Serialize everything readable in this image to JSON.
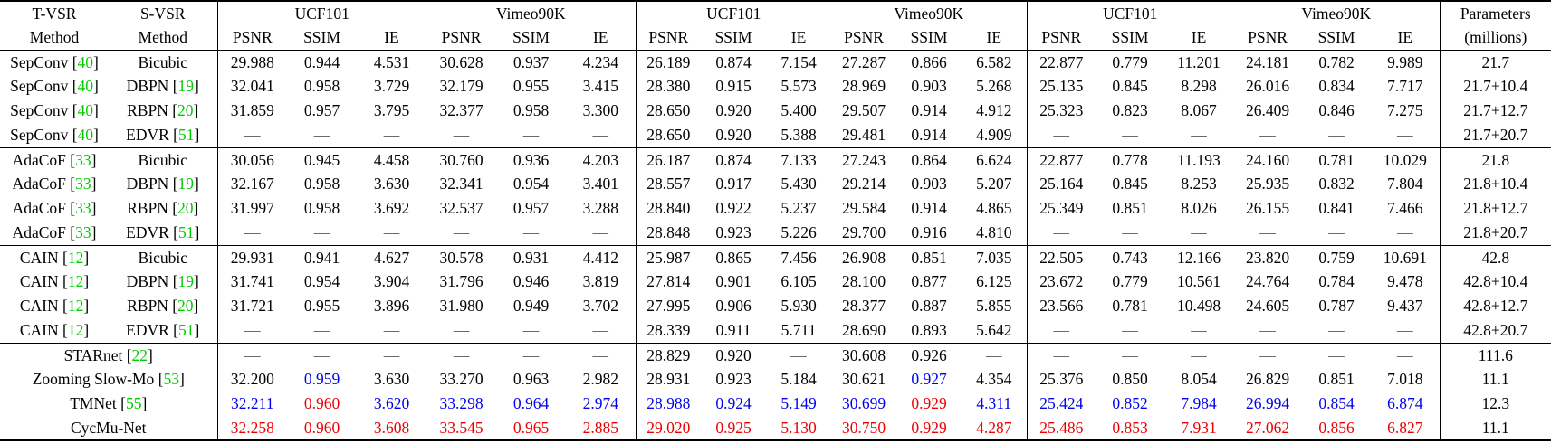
{
  "table": {
    "header": {
      "t_vsr": [
        "T-VSR",
        "Method"
      ],
      "s_vsr": [
        "S-VSR",
        "Method"
      ],
      "dataset_groups": [
        "UCF101",
        "Vimeo90K",
        "UCF101",
        "Vimeo90K",
        "UCF101",
        "Vimeo90K"
      ],
      "metrics": [
        "PSNR",
        "SSIM",
        "IE"
      ],
      "parameters": [
        "Parameters",
        "(millions)"
      ]
    },
    "colors": {
      "best": "#EE0000",
      "second_best": "#0000EE",
      "citation": "#00CC00"
    },
    "dash": "—",
    "rows": [
      {
        "t_vsr": {
          "name": "SepConv",
          "cite": "40"
        },
        "s_vsr": {
          "name": "Bicubic"
        },
        "values": [
          [
            "29.988"
          ],
          [
            "0.944"
          ],
          [
            "4.531"
          ],
          [
            "30.628"
          ],
          [
            "0.937"
          ],
          [
            "4.234"
          ],
          [
            "26.189"
          ],
          [
            "0.874"
          ],
          [
            "7.154"
          ],
          [
            "27.287"
          ],
          [
            "0.866"
          ],
          [
            "6.582"
          ],
          [
            "22.877"
          ],
          [
            "0.779"
          ],
          [
            "11.201"
          ],
          [
            "24.181"
          ],
          [
            "0.782"
          ],
          [
            "9.989"
          ]
        ],
        "params": "21.7",
        "section_end": false
      },
      {
        "t_vsr": {
          "name": "SepConv",
          "cite": "40"
        },
        "s_vsr": {
          "name": "DBPN",
          "cite": "19"
        },
        "values": [
          [
            "32.041"
          ],
          [
            "0.958"
          ],
          [
            "3.729"
          ],
          [
            "32.179"
          ],
          [
            "0.955"
          ],
          [
            "3.415"
          ],
          [
            "28.380"
          ],
          [
            "0.915"
          ],
          [
            "5.573"
          ],
          [
            "28.969"
          ],
          [
            "0.903"
          ],
          [
            "5.268"
          ],
          [
            "25.135"
          ],
          [
            "0.845"
          ],
          [
            "8.298"
          ],
          [
            "26.016"
          ],
          [
            "0.834"
          ],
          [
            "7.717"
          ]
        ],
        "params": "21.7+10.4",
        "section_end": false
      },
      {
        "t_vsr": {
          "name": "SepConv",
          "cite": "40"
        },
        "s_vsr": {
          "name": "RBPN",
          "cite": "20"
        },
        "values": [
          [
            "31.859"
          ],
          [
            "0.957"
          ],
          [
            "3.795"
          ],
          [
            "32.377"
          ],
          [
            "0.958"
          ],
          [
            "3.300"
          ],
          [
            "28.650"
          ],
          [
            "0.920"
          ],
          [
            "5.400"
          ],
          [
            "29.507"
          ],
          [
            "0.914"
          ],
          [
            "4.912"
          ],
          [
            "25.323"
          ],
          [
            "0.823"
          ],
          [
            "8.067"
          ],
          [
            "26.409"
          ],
          [
            "0.846"
          ],
          [
            "7.275"
          ]
        ],
        "params": "21.7+12.7",
        "section_end": false
      },
      {
        "t_vsr": {
          "name": "SepConv",
          "cite": "40"
        },
        "s_vsr": {
          "name": "EDVR",
          "cite": "51"
        },
        "values": [
          [
            "—"
          ],
          [
            "—"
          ],
          [
            "—"
          ],
          [
            "—"
          ],
          [
            "—"
          ],
          [
            "—"
          ],
          [
            "28.650"
          ],
          [
            "0.920"
          ],
          [
            "5.388"
          ],
          [
            "29.481"
          ],
          [
            "0.914"
          ],
          [
            "4.909"
          ],
          [
            "—"
          ],
          [
            "—"
          ],
          [
            "—"
          ],
          [
            "—"
          ],
          [
            "—"
          ],
          [
            "—"
          ]
        ],
        "params": "21.7+20.7",
        "section_end": true
      },
      {
        "t_vsr": {
          "name": "AdaCoF",
          "cite": "33"
        },
        "s_vsr": {
          "name": "Bicubic"
        },
        "values": [
          [
            "30.056"
          ],
          [
            "0.945"
          ],
          [
            "4.458"
          ],
          [
            "30.760"
          ],
          [
            "0.936"
          ],
          [
            "4.203"
          ],
          [
            "26.187"
          ],
          [
            "0.874"
          ],
          [
            "7.133"
          ],
          [
            "27.243"
          ],
          [
            "0.864"
          ],
          [
            "6.624"
          ],
          [
            "22.877"
          ],
          [
            "0.778"
          ],
          [
            "11.193"
          ],
          [
            "24.160"
          ],
          [
            "0.781"
          ],
          [
            "10.029"
          ]
        ],
        "params": "21.8",
        "section_end": false
      },
      {
        "t_vsr": {
          "name": "AdaCoF",
          "cite": "33"
        },
        "s_vsr": {
          "name": "DBPN",
          "cite": "19"
        },
        "values": [
          [
            "32.167"
          ],
          [
            "0.958"
          ],
          [
            "3.630"
          ],
          [
            "32.341"
          ],
          [
            "0.954"
          ],
          [
            "3.401"
          ],
          [
            "28.557"
          ],
          [
            "0.917"
          ],
          [
            "5.430"
          ],
          [
            "29.214"
          ],
          [
            "0.903"
          ],
          [
            "5.207"
          ],
          [
            "25.164"
          ],
          [
            "0.845"
          ],
          [
            "8.253"
          ],
          [
            "25.935"
          ],
          [
            "0.832"
          ],
          [
            "7.804"
          ]
        ],
        "params": "21.8+10.4",
        "section_end": false
      },
      {
        "t_vsr": {
          "name": "AdaCoF",
          "cite": "33"
        },
        "s_vsr": {
          "name": "RBPN",
          "cite": "20"
        },
        "values": [
          [
            "31.997"
          ],
          [
            "0.958"
          ],
          [
            "3.692"
          ],
          [
            "32.537"
          ],
          [
            "0.957"
          ],
          [
            "3.288"
          ],
          [
            "28.840"
          ],
          [
            "0.922"
          ],
          [
            "5.237"
          ],
          [
            "29.584"
          ],
          [
            "0.914"
          ],
          [
            "4.865"
          ],
          [
            "25.349"
          ],
          [
            "0.851"
          ],
          [
            "8.026"
          ],
          [
            "26.155"
          ],
          [
            "0.841"
          ],
          [
            "7.466"
          ]
        ],
        "params": "21.8+12.7",
        "section_end": false
      },
      {
        "t_vsr": {
          "name": "AdaCoF",
          "cite": "33"
        },
        "s_vsr": {
          "name": "EDVR",
          "cite": "51"
        },
        "values": [
          [
            "—"
          ],
          [
            "—"
          ],
          [
            "—"
          ],
          [
            "—"
          ],
          [
            "—"
          ],
          [
            "—"
          ],
          [
            "28.848"
          ],
          [
            "0.923"
          ],
          [
            "5.226"
          ],
          [
            "29.700"
          ],
          [
            "0.916"
          ],
          [
            "4.810"
          ],
          [
            "—"
          ],
          [
            "—"
          ],
          [
            "—"
          ],
          [
            "—"
          ],
          [
            "—"
          ],
          [
            "—"
          ]
        ],
        "params": "21.8+20.7",
        "section_end": true
      },
      {
        "t_vsr": {
          "name": "CAIN",
          "cite": "12"
        },
        "s_vsr": {
          "name": "Bicubic"
        },
        "values": [
          [
            "29.931"
          ],
          [
            "0.941"
          ],
          [
            "4.627"
          ],
          [
            "30.578"
          ],
          [
            "0.931"
          ],
          [
            "4.412"
          ],
          [
            "25.987"
          ],
          [
            "0.865"
          ],
          [
            "7.456"
          ],
          [
            "26.908"
          ],
          [
            "0.851"
          ],
          [
            "7.035"
          ],
          [
            "22.505"
          ],
          [
            "0.743"
          ],
          [
            "12.166"
          ],
          [
            "23.820"
          ],
          [
            "0.759"
          ],
          [
            "10.691"
          ]
        ],
        "params": "42.8",
        "section_end": false
      },
      {
        "t_vsr": {
          "name": "CAIN",
          "cite": "12"
        },
        "s_vsr": {
          "name": "DBPN",
          "cite": "19"
        },
        "values": [
          [
            "31.741"
          ],
          [
            "0.954"
          ],
          [
            "3.904"
          ],
          [
            "31.796"
          ],
          [
            "0.946"
          ],
          [
            "3.819"
          ],
          [
            "27.814"
          ],
          [
            "0.901"
          ],
          [
            "6.105"
          ],
          [
            "28.100"
          ],
          [
            "0.877"
          ],
          [
            "6.125"
          ],
          [
            "23.672"
          ],
          [
            "0.779"
          ],
          [
            "10.561"
          ],
          [
            "24.764"
          ],
          [
            "0.784"
          ],
          [
            "9.478"
          ]
        ],
        "params": "42.8+10.4",
        "section_end": false
      },
      {
        "t_vsr": {
          "name": "CAIN",
          "cite": "12"
        },
        "s_vsr": {
          "name": "RBPN",
          "cite": "20"
        },
        "values": [
          [
            "31.721"
          ],
          [
            "0.955"
          ],
          [
            "3.896"
          ],
          [
            "31.980"
          ],
          [
            "0.949"
          ],
          [
            "3.702"
          ],
          [
            "27.995"
          ],
          [
            "0.906"
          ],
          [
            "5.930"
          ],
          [
            "28.377"
          ],
          [
            "0.887"
          ],
          [
            "5.855"
          ],
          [
            "23.566"
          ],
          [
            "0.781"
          ],
          [
            "10.498"
          ],
          [
            "24.605"
          ],
          [
            "0.787"
          ],
          [
            "9.437"
          ]
        ],
        "params": "42.8+12.7",
        "section_end": false
      },
      {
        "t_vsr": {
          "name": "CAIN",
          "cite": "12"
        },
        "s_vsr": {
          "name": "EDVR",
          "cite": "51"
        },
        "values": [
          [
            "—"
          ],
          [
            "—"
          ],
          [
            "—"
          ],
          [
            "—"
          ],
          [
            "—"
          ],
          [
            "—"
          ],
          [
            "28.339"
          ],
          [
            "0.911"
          ],
          [
            "5.711"
          ],
          [
            "28.690"
          ],
          [
            "0.893"
          ],
          [
            "5.642"
          ],
          [
            "—"
          ],
          [
            "—"
          ],
          [
            "—"
          ],
          [
            "—"
          ],
          [
            "—"
          ],
          [
            "—"
          ]
        ],
        "params": "42.8+20.7",
        "section_end": true
      },
      {
        "t_vsr": {
          "name": "STARnet",
          "cite": "22",
          "span": 2
        },
        "s_vsr": null,
        "values": [
          [
            "—"
          ],
          [
            "—"
          ],
          [
            "—"
          ],
          [
            "—"
          ],
          [
            "—"
          ],
          [
            "—"
          ],
          [
            "28.829"
          ],
          [
            "0.920"
          ],
          [
            "—"
          ],
          [
            "30.608"
          ],
          [
            "0.926"
          ],
          [
            "—"
          ],
          [
            "—"
          ],
          [
            "—"
          ],
          [
            "—"
          ],
          [
            "—"
          ],
          [
            "—"
          ],
          [
            "—"
          ]
        ],
        "params": "111.6",
        "section_end": false
      },
      {
        "t_vsr": {
          "name": "Zooming Slow-Mo",
          "cite": "53",
          "span": 2
        },
        "s_vsr": null,
        "values": [
          [
            "32.200"
          ],
          [
            "0.959",
            "b"
          ],
          [
            "3.630"
          ],
          [
            "33.270"
          ],
          [
            "0.963"
          ],
          [
            "2.982"
          ],
          [
            "28.931"
          ],
          [
            "0.923"
          ],
          [
            "5.184"
          ],
          [
            "30.621"
          ],
          [
            "0.927",
            "b"
          ],
          [
            "4.354"
          ],
          [
            "25.376"
          ],
          [
            "0.850"
          ],
          [
            "8.054"
          ],
          [
            "26.829"
          ],
          [
            "0.851"
          ],
          [
            "7.018"
          ]
        ],
        "params": "11.1",
        "section_end": false
      },
      {
        "t_vsr": {
          "name": "TMNet",
          "cite": "55",
          "span": 2
        },
        "s_vsr": null,
        "values": [
          [
            "32.211",
            "b"
          ],
          [
            "0.960",
            "r"
          ],
          [
            "3.620",
            "b"
          ],
          [
            "33.298",
            "b"
          ],
          [
            "0.964",
            "b"
          ],
          [
            "2.974",
            "b"
          ],
          [
            "28.988",
            "b"
          ],
          [
            "0.924",
            "b"
          ],
          [
            "5.149",
            "b"
          ],
          [
            "30.699",
            "b"
          ],
          [
            "0.929",
            "r"
          ],
          [
            "4.311",
            "b"
          ],
          [
            "25.424",
            "b"
          ],
          [
            "0.852",
            "b"
          ],
          [
            "7.984",
            "b"
          ],
          [
            "26.994",
            "b"
          ],
          [
            "0.854",
            "b"
          ],
          [
            "6.874",
            "b"
          ]
        ],
        "params": "12.3",
        "section_end": false
      },
      {
        "t_vsr": {
          "name": "CycMu-Net",
          "span": 2
        },
        "s_vsr": null,
        "values": [
          [
            "32.258",
            "r"
          ],
          [
            "0.960",
            "r"
          ],
          [
            "3.608",
            "r"
          ],
          [
            "33.545",
            "r"
          ],
          [
            "0.965",
            "r"
          ],
          [
            "2.885",
            "r"
          ],
          [
            "29.020",
            "r"
          ],
          [
            "0.925",
            "r"
          ],
          [
            "5.130",
            "r"
          ],
          [
            "30.750",
            "r"
          ],
          [
            "0.929",
            "r"
          ],
          [
            "4.287",
            "r"
          ],
          [
            "25.486",
            "r"
          ],
          [
            "0.853",
            "r"
          ],
          [
            "7.931",
            "r"
          ],
          [
            "27.062",
            "r"
          ],
          [
            "0.856",
            "r"
          ],
          [
            "6.827",
            "r"
          ]
        ],
        "params": "11.1",
        "section_end": false
      }
    ]
  }
}
